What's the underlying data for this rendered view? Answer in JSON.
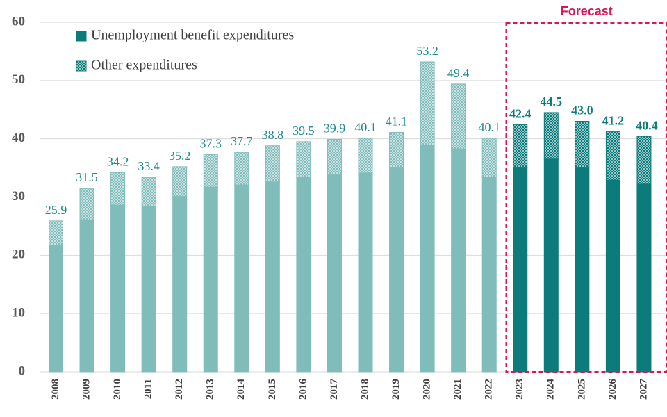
{
  "chart_data": {
    "type": "stacked_bar",
    "categories": [
      "2008",
      "2009",
      "2010",
      "2011",
      "2012",
      "2013",
      "2014",
      "2015",
      "2016",
      "2017",
      "2018",
      "2019",
      "2020",
      "2021",
      "2022",
      "2023",
      "2024",
      "2025",
      "2026",
      "2027"
    ],
    "series": [
      {
        "name": "Unemployment benefit expenditures",
        "color": "#0b7b7b",
        "values": [
          21.7,
          26.1,
          28.6,
          28.4,
          30.1,
          31.7,
          32.1,
          32.6,
          33.4,
          33.8,
          34.1,
          35.0,
          38.9,
          38.3,
          33.4,
          35.0,
          36.5,
          35.0,
          32.9,
          32.2
        ]
      },
      {
        "name": "Other expenditures",
        "color": "#0b7b7b",
        "pattern": "dots",
        "values": [
          4.2,
          5.4,
          5.6,
          5.0,
          5.1,
          5.6,
          5.6,
          6.2,
          6.1,
          6.1,
          6.0,
          6.1,
          14.3,
          11.1,
          6.7,
          7.4,
          8.0,
          8.0,
          8.3,
          8.2
        ]
      }
    ],
    "totals": [
      25.9,
      31.5,
      34.2,
      33.4,
      35.2,
      37.3,
      37.7,
      38.8,
      39.5,
      39.9,
      40.1,
      41.1,
      53.2,
      49.4,
      40.1,
      42.4,
      44.5,
      43.0,
      41.2,
      40.4
    ],
    "total_labels": [
      "25.9",
      "31.5",
      "34.2",
      "33.4",
      "35.2",
      "37.3",
      "37.7",
      "38.8",
      "39.5",
      "39.9",
      "40.1",
      "41.1",
      "53.2",
      "49.4",
      "40.1",
      "42.4",
      "44.5",
      "43.0",
      "41.2",
      "40.4"
    ],
    "history_color": "#80bcb9",
    "forecast": {
      "label": "Forecast",
      "from": "2023",
      "color": "#d6185a"
    },
    "ylim": [
      0,
      60
    ],
    "yticks": [
      0,
      10,
      20,
      30,
      40,
      50,
      60
    ],
    "grid": true,
    "legend": "top-left"
  }
}
